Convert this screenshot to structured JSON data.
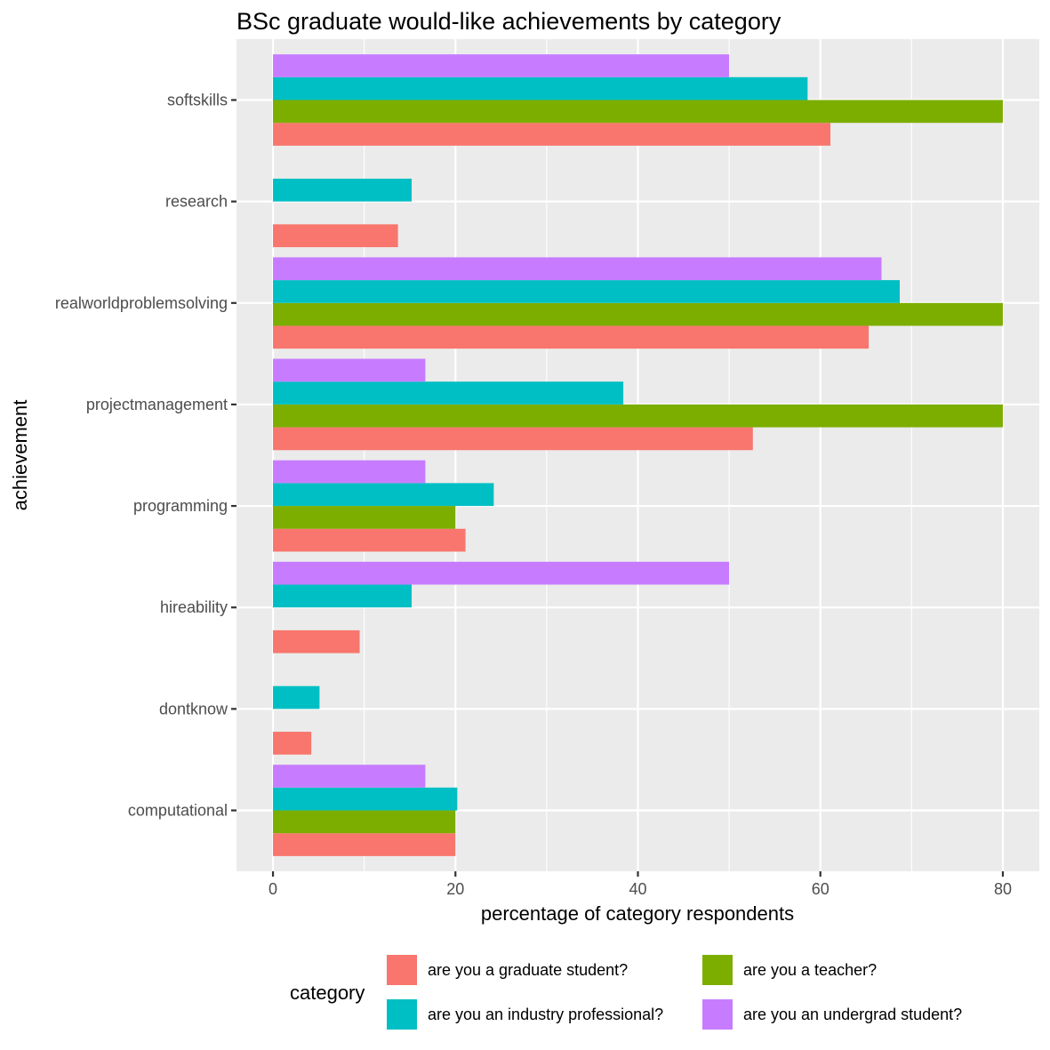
{
  "chart_data": {
    "type": "bar",
    "orientation": "horizontal",
    "title": "BSc graduate would-like achievements by category",
    "xlabel": "percentage of category respondents",
    "ylabel": "achievement",
    "xlim": [
      -4,
      84
    ],
    "x_ticks": [
      0,
      20,
      40,
      60,
      80
    ],
    "x_tick_labels": [
      "0",
      "20",
      "40",
      "60",
      "80"
    ],
    "categories": [
      "computational",
      "dontknow",
      "hireability",
      "programming",
      "projectmanagement",
      "realworldproblemsolving",
      "research",
      "softskills"
    ],
    "legend_title": "category",
    "legend_position": "bottom",
    "grid": true,
    "series": [
      {
        "name": "are you a graduate student?",
        "color": "#F8766D",
        "values": [
          20.0,
          4.2,
          9.5,
          21.1,
          52.6,
          65.3,
          13.7,
          61.1
        ]
      },
      {
        "name": "are you a teacher?",
        "color": "#7CAE00",
        "values": [
          20.0,
          null,
          null,
          20.0,
          80.0,
          80.0,
          null,
          80.0
        ]
      },
      {
        "name": "are you an industry professional?",
        "color": "#00BFC4",
        "values": [
          20.2,
          5.1,
          15.2,
          24.2,
          38.4,
          68.7,
          15.2,
          58.6
        ]
      },
      {
        "name": "are you an undergrad student?",
        "color": "#C77CFF",
        "values": [
          16.7,
          null,
          50.0,
          16.7,
          16.7,
          66.7,
          null,
          50.0
        ]
      }
    ]
  }
}
